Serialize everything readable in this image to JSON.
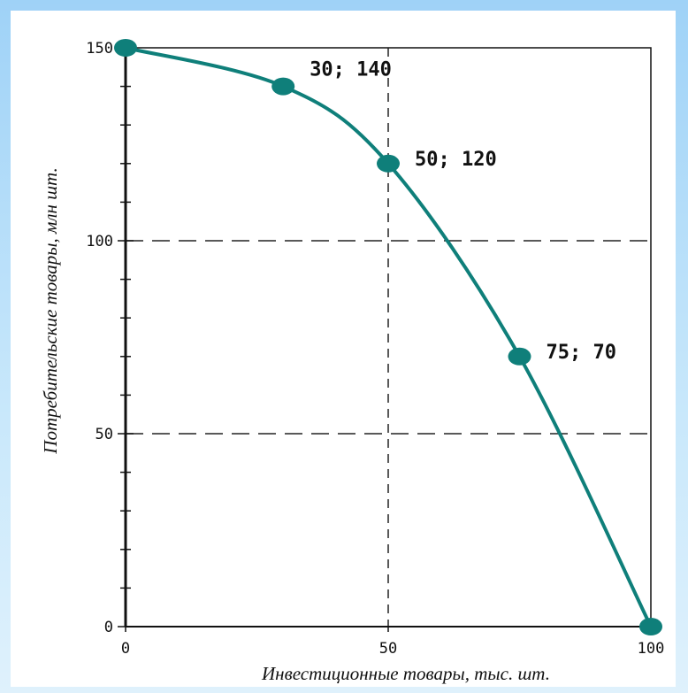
{
  "chart_data": {
    "type": "line",
    "title": "",
    "xlabel": "Инвестиционные товары, тыс. шт.",
    "ylabel": "Потребительские товары, млн шт.",
    "xlim": [
      0,
      100
    ],
    "ylim": [
      0,
      150
    ],
    "x_ticks": [
      "0",
      "50",
      "100"
    ],
    "y_ticks": [
      "0",
      "50",
      "100",
      "150"
    ],
    "grid": "dashed lines at x=50, y=50, y=100",
    "series": [
      {
        "x": [
          0,
          30,
          50,
          75,
          100
        ],
        "y": [
          150,
          140,
          120,
          70,
          0
        ],
        "color": "#0f7f7a"
      }
    ],
    "point_labels": [
      {
        "text": "30; 140",
        "x": 30,
        "y": 140
      },
      {
        "text": "50; 120",
        "x": 50,
        "y": 120
      },
      {
        "text": "75; 70",
        "x": 75,
        "y": 70
      }
    ]
  }
}
